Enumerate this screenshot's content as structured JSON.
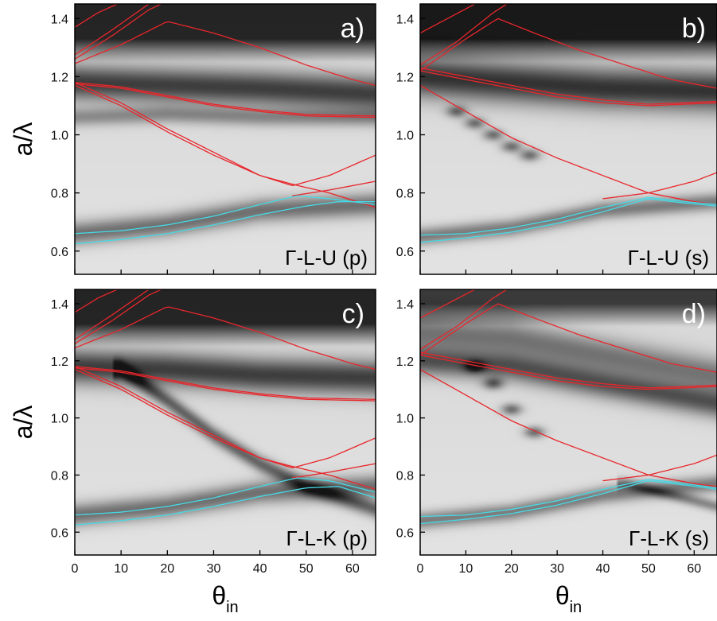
{
  "chart_data": [
    {
      "type": "heatmap",
      "panel": "a)",
      "tag": "Γ-L-U (p)",
      "xlabel": "",
      "ylabel": "a/λ",
      "xlim": [
        0,
        65
      ],
      "ylim": [
        0.52,
        1.45
      ],
      "xticks": [
        0,
        10,
        20,
        30,
        40,
        50,
        60
      ],
      "yticks": [
        0.6,
        0.8,
        1.0,
        1.2,
        1.4
      ],
      "xtick_labels_shown": false,
      "background": "grayscale transmission map (dark = low transmission)",
      "dark_bands": [
        {
          "x": [
            0,
            20,
            40,
            65
          ],
          "y": [
            0.66,
            0.69,
            0.74,
            0.76
          ],
          "width": 0.04,
          "strength": 0.5
        },
        {
          "x": [
            0,
            20,
            40,
            65
          ],
          "y": [
            1.18,
            1.17,
            1.16,
            1.14
          ],
          "width": 0.06,
          "strength": 0.7
        },
        {
          "x": [
            0,
            20,
            40,
            65
          ],
          "y": [
            1.06,
            1.07,
            1.06,
            1.06
          ],
          "width": 0.03,
          "strength": 0.35
        }
      ],
      "dark_top": {
        "from_y": 1.25,
        "strength": 0.8
      },
      "series": [
        {
          "color": "#e8262b",
          "x": [
            0,
            10,
            20,
            30,
            40,
            50,
            60,
            65
          ],
          "y": [
            1.245,
            1.31,
            1.39,
            1.35,
            1.3,
            1.24,
            1.19,
            1.17
          ]
        },
        {
          "color": "#e8262b",
          "x": [
            0,
            8,
            16,
            20
          ],
          "y": [
            1.26,
            1.34,
            1.43,
            1.46
          ]
        },
        {
          "color": "#e8262b",
          "x": [
            0,
            8,
            16,
            20
          ],
          "y": [
            1.275,
            1.36,
            1.45,
            1.47
          ]
        },
        {
          "color": "#e8262b",
          "x": [
            0,
            5,
            12,
            20
          ],
          "y": [
            1.37,
            1.42,
            1.47,
            1.5
          ]
        },
        {
          "color": "#e8262b",
          "x": [
            0,
            10,
            20,
            30,
            40,
            50,
            65
          ],
          "y": [
            1.175,
            1.16,
            1.13,
            1.1,
            1.08,
            1.065,
            1.06
          ]
        },
        {
          "color": "#e8262b",
          "x": [
            0,
            10,
            20,
            30,
            40,
            50,
            65
          ],
          "y": [
            1.18,
            1.165,
            1.135,
            1.105,
            1.085,
            1.07,
            1.065
          ]
        },
        {
          "color": "#e8262b",
          "x": [
            0,
            10,
            20,
            30,
            40,
            47,
            55,
            65
          ],
          "y": [
            1.18,
            1.11,
            1.02,
            0.94,
            0.86,
            0.825,
            0.86,
            0.93
          ]
        },
        {
          "color": "#e8262b",
          "x": [
            0,
            10,
            20,
            30,
            40,
            47,
            55,
            65
          ],
          "y": [
            1.17,
            1.1,
            1.01,
            0.93,
            0.86,
            0.83,
            0.8,
            0.75
          ]
        },
        {
          "color": "#e8262b",
          "x": [
            47,
            55,
            65
          ],
          "y": [
            0.79,
            0.81,
            0.84
          ]
        },
        {
          "color": "#46d9e6",
          "x": [
            0,
            10,
            20,
            30,
            40,
            48,
            55,
            65
          ],
          "y": [
            0.66,
            0.67,
            0.69,
            0.72,
            0.76,
            0.79,
            0.78,
            0.76
          ]
        },
        {
          "color": "#46d9e6",
          "x": [
            0,
            10,
            20,
            30,
            40,
            50,
            57,
            65
          ],
          "y": [
            0.625,
            0.64,
            0.66,
            0.69,
            0.725,
            0.755,
            0.77,
            0.77
          ]
        }
      ]
    },
    {
      "type": "heatmap",
      "panel": "b)",
      "tag": "Γ-L-U (s)",
      "xlabel": "θin",
      "ylabel": "",
      "xlim": [
        0,
        65
      ],
      "ylim": [
        0.52,
        1.45
      ],
      "xticks": [
        0,
        10,
        20,
        30,
        40,
        50,
        60
      ],
      "yticks": [
        0.6,
        0.8,
        1.0,
        1.2,
        1.4
      ],
      "xtick_labels_shown": false,
      "background": "grayscale transmission map (dark = low transmission)",
      "dark_bands": [
        {
          "x": [
            0,
            20,
            40,
            65
          ],
          "y": [
            0.65,
            0.68,
            0.74,
            0.77
          ],
          "width": 0.03,
          "strength": 0.45
        },
        {
          "x": [
            0,
            20,
            40,
            65
          ],
          "y": [
            1.2,
            1.18,
            1.16,
            1.15
          ],
          "width": 0.07,
          "strength": 0.75
        }
      ],
      "dark_top": {
        "from_y": 1.25,
        "strength": 0.85
      },
      "dark_spots": [
        {
          "x": 8,
          "y": 1.08
        },
        {
          "x": 12,
          "y": 1.04
        },
        {
          "x": 16,
          "y": 1.0
        },
        {
          "x": 20,
          "y": 0.96
        },
        {
          "x": 24,
          "y": 0.93
        }
      ],
      "series": [
        {
          "color": "#e8262b",
          "x": [
            0,
            10,
            17,
            25,
            35,
            45,
            55,
            65
          ],
          "y": [
            1.22,
            1.33,
            1.4,
            1.35,
            1.29,
            1.24,
            1.19,
            1.16
          ]
        },
        {
          "color": "#e8262b",
          "x": [
            0,
            8,
            16,
            20
          ],
          "y": [
            1.24,
            1.32,
            1.42,
            1.46
          ]
        },
        {
          "color": "#e8262b",
          "x": [
            0,
            6,
            12,
            18
          ],
          "y": [
            1.35,
            1.4,
            1.45,
            1.49
          ]
        },
        {
          "color": "#e8262b",
          "x": [
            0,
            10,
            20,
            30,
            40,
            50,
            65
          ],
          "y": [
            1.22,
            1.19,
            1.16,
            1.13,
            1.11,
            1.1,
            1.11
          ]
        },
        {
          "color": "#e8262b",
          "x": [
            0,
            10,
            20,
            30,
            40,
            50,
            65
          ],
          "y": [
            1.23,
            1.2,
            1.17,
            1.14,
            1.12,
            1.105,
            1.115
          ]
        },
        {
          "color": "#e8262b",
          "x": [
            0,
            10,
            20,
            30,
            40,
            50,
            60,
            65
          ],
          "y": [
            1.17,
            1.08,
            0.99,
            0.92,
            0.86,
            0.8,
            0.77,
            0.76
          ]
        },
        {
          "color": "#e8262b",
          "x": [
            40,
            50,
            60,
            65
          ],
          "y": [
            0.78,
            0.8,
            0.84,
            0.87
          ]
        },
        {
          "color": "#46d9e6",
          "x": [
            0,
            10,
            20,
            30,
            40,
            50,
            58,
            65
          ],
          "y": [
            0.655,
            0.66,
            0.68,
            0.71,
            0.75,
            0.785,
            0.77,
            0.76
          ]
        },
        {
          "color": "#46d9e6",
          "x": [
            0,
            10,
            20,
            30,
            40,
            50,
            58,
            65
          ],
          "y": [
            0.63,
            0.645,
            0.665,
            0.695,
            0.735,
            0.78,
            0.765,
            0.755
          ]
        }
      ]
    },
    {
      "type": "heatmap",
      "panel": "c)",
      "tag": "Γ-L-K (p)",
      "xlabel": "θin",
      "ylabel": "a/λ",
      "xlim": [
        0,
        65
      ],
      "ylim": [
        0.52,
        1.45
      ],
      "xticks": [
        0,
        10,
        20,
        30,
        40,
        50,
        60
      ],
      "yticks": [
        0.6,
        0.8,
        1.0,
        1.2,
        1.4
      ],
      "xtick_labels_shown": true,
      "background": "grayscale transmission map (dark = low transmission)",
      "dark_bands": [
        {
          "x": [
            0,
            20,
            40,
            65
          ],
          "y": [
            0.66,
            0.69,
            0.74,
            0.76
          ],
          "width": 0.04,
          "strength": 0.5
        },
        {
          "x": [
            0,
            20,
            40,
            65
          ],
          "y": [
            1.18,
            1.17,
            1.15,
            1.14
          ],
          "width": 0.06,
          "strength": 0.7
        },
        {
          "x": [
            10,
            20,
            30,
            40,
            50,
            65
          ],
          "y": [
            1.17,
            1.06,
            0.94,
            0.84,
            0.76,
            0.68
          ],
          "width": 0.03,
          "strength": 0.55
        }
      ],
      "dark_top": {
        "from_y": 1.25,
        "strength": 0.8
      },
      "series": [
        {
          "color": "#e8262b",
          "x": [
            0,
            10,
            20,
            30,
            40,
            50,
            60,
            65
          ],
          "y": [
            1.245,
            1.31,
            1.39,
            1.35,
            1.3,
            1.24,
            1.19,
            1.17
          ]
        },
        {
          "color": "#e8262b",
          "x": [
            0,
            8,
            16,
            20
          ],
          "y": [
            1.26,
            1.34,
            1.43,
            1.46
          ]
        },
        {
          "color": "#e8262b",
          "x": [
            0,
            8,
            16,
            20
          ],
          "y": [
            1.275,
            1.36,
            1.45,
            1.47
          ]
        },
        {
          "color": "#e8262b",
          "x": [
            0,
            5,
            12,
            20
          ],
          "y": [
            1.37,
            1.42,
            1.47,
            1.5
          ]
        },
        {
          "color": "#e8262b",
          "x": [
            0,
            10,
            20,
            30,
            40,
            50,
            65
          ],
          "y": [
            1.175,
            1.16,
            1.13,
            1.1,
            1.08,
            1.065,
            1.06
          ]
        },
        {
          "color": "#e8262b",
          "x": [
            0,
            10,
            20,
            30,
            40,
            50,
            65
          ],
          "y": [
            1.18,
            1.165,
            1.135,
            1.105,
            1.085,
            1.07,
            1.065
          ]
        },
        {
          "color": "#e8262b",
          "x": [
            0,
            10,
            20,
            30,
            40,
            47,
            55,
            65
          ],
          "y": [
            1.18,
            1.11,
            1.02,
            0.94,
            0.86,
            0.825,
            0.86,
            0.93
          ]
        },
        {
          "color": "#e8262b",
          "x": [
            0,
            10,
            20,
            30,
            40,
            47,
            55,
            65
          ],
          "y": [
            1.17,
            1.1,
            1.01,
            0.93,
            0.86,
            0.83,
            0.8,
            0.75
          ]
        },
        {
          "color": "#e8262b",
          "x": [
            47,
            55,
            65
          ],
          "y": [
            0.79,
            0.81,
            0.84
          ]
        },
        {
          "color": "#46d9e6",
          "x": [
            0,
            10,
            20,
            30,
            40,
            48,
            55,
            65
          ],
          "y": [
            0.66,
            0.67,
            0.69,
            0.72,
            0.76,
            0.79,
            0.78,
            0.74
          ]
        },
        {
          "color": "#46d9e6",
          "x": [
            0,
            10,
            20,
            30,
            40,
            50,
            57,
            65
          ],
          "y": [
            0.625,
            0.64,
            0.66,
            0.69,
            0.725,
            0.755,
            0.76,
            0.72
          ]
        }
      ]
    },
    {
      "type": "heatmap",
      "panel": "d)",
      "tag": "Γ-L-K (s)",
      "xlabel": "θin",
      "ylabel": "",
      "xlim": [
        0,
        65
      ],
      "ylim": [
        0.52,
        1.45
      ],
      "xticks": [
        0,
        10,
        20,
        30,
        40,
        50,
        60
      ],
      "yticks": [
        0.6,
        0.8,
        1.0,
        1.2,
        1.4
      ],
      "xtick_labels_shown": true,
      "background": "grayscale transmission map (dark = low transmission)",
      "dark_bands": [
        {
          "x": [
            0,
            20,
            40,
            65
          ],
          "y": [
            0.64,
            0.67,
            0.73,
            0.77
          ],
          "width": 0.03,
          "strength": 0.45
        },
        {
          "x": [
            0,
            20,
            40,
            65
          ],
          "y": [
            1.2,
            1.18,
            1.12,
            1.05
          ],
          "width": 0.05,
          "strength": 0.6
        },
        {
          "x": [
            0,
            20,
            40,
            65
          ],
          "y": [
            1.3,
            1.28,
            1.22,
            1.15
          ],
          "width": 0.06,
          "strength": 0.45
        },
        {
          "x": [
            45,
            55,
            65
          ],
          "y": [
            0.77,
            0.73,
            0.69
          ],
          "width": 0.02,
          "strength": 0.4
        }
      ],
      "dark_top": {
        "from_y": 1.32,
        "strength": 0.7
      },
      "dark_spots": [
        {
          "x": 12,
          "y": 1.18
        },
        {
          "x": 16,
          "y": 1.12
        },
        {
          "x": 20,
          "y": 1.03
        },
        {
          "x": 25,
          "y": 0.95
        }
      ],
      "series": [
        {
          "color": "#e8262b",
          "x": [
            0,
            10,
            17,
            25,
            35,
            45,
            55,
            65
          ],
          "y": [
            1.22,
            1.33,
            1.4,
            1.35,
            1.29,
            1.24,
            1.19,
            1.16
          ]
        },
        {
          "color": "#e8262b",
          "x": [
            0,
            8,
            16,
            20
          ],
          "y": [
            1.24,
            1.32,
            1.42,
            1.46
          ]
        },
        {
          "color": "#e8262b",
          "x": [
            0,
            6,
            12,
            18
          ],
          "y": [
            1.35,
            1.4,
            1.45,
            1.49
          ]
        },
        {
          "color": "#e8262b",
          "x": [
            0,
            10,
            20,
            30,
            40,
            50,
            65
          ],
          "y": [
            1.22,
            1.19,
            1.16,
            1.13,
            1.11,
            1.1,
            1.11
          ]
        },
        {
          "color": "#e8262b",
          "x": [
            0,
            10,
            20,
            30,
            40,
            50,
            65
          ],
          "y": [
            1.23,
            1.2,
            1.17,
            1.14,
            1.12,
            1.105,
            1.115
          ]
        },
        {
          "color": "#e8262b",
          "x": [
            0,
            10,
            20,
            30,
            40,
            50,
            60,
            65
          ],
          "y": [
            1.17,
            1.08,
            0.99,
            0.92,
            0.86,
            0.8,
            0.77,
            0.76
          ]
        },
        {
          "color": "#e8262b",
          "x": [
            40,
            50,
            60,
            65
          ],
          "y": [
            0.78,
            0.8,
            0.84,
            0.87
          ]
        },
        {
          "color": "#46d9e6",
          "x": [
            0,
            10,
            20,
            30,
            40,
            50,
            58,
            65
          ],
          "y": [
            0.655,
            0.66,
            0.68,
            0.71,
            0.75,
            0.785,
            0.77,
            0.755
          ]
        },
        {
          "color": "#46d9e6",
          "x": [
            0,
            10,
            20,
            30,
            40,
            50,
            58,
            65
          ],
          "y": [
            0.63,
            0.645,
            0.665,
            0.695,
            0.735,
            0.78,
            0.765,
            0.75
          ]
        }
      ]
    }
  ],
  "colors": {
    "photonic_band_lines": "#e8262b",
    "diffraction_lines": "#46d9e6",
    "map_light": "#f4f4f4",
    "map_dark": "#141414"
  }
}
